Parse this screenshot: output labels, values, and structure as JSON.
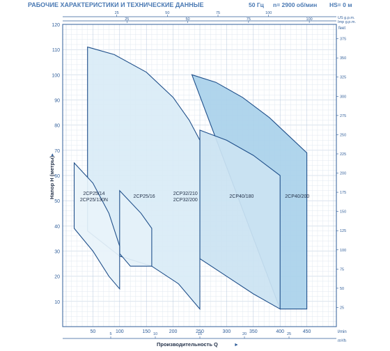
{
  "header": {
    "title": "РАБОЧИЕ ХАРАКТЕРИСТИКИ И ТЕХНИЧЕСКИЕ ДАННЫЕ",
    "frequency": "50 Гц",
    "speed": "n= 2900 об/мин",
    "hs": "HS= 0 м"
  },
  "chart_data": {
    "type": "area",
    "xlabel": "Производительность Q",
    "ylabel": "Напор H (метры)",
    "x_unit": "l/min",
    "y_unit_right": "feet",
    "top_unit": "US g.p.m.",
    "top_unit2": "Imp g.p.m.",
    "bottom_unit": "m³/h",
    "xlim": [
      0,
      500
    ],
    "ylim": [
      0,
      120
    ],
    "x_ticks": [
      50,
      100,
      150,
      200,
      250,
      300,
      350,
      400,
      450
    ],
    "x_tick_labels": [
      "50",
      "100",
      "150",
      "200",
      "250",
      "300",
      "350",
      "400",
      "450"
    ],
    "y_ticks": [
      10,
      20,
      30,
      40,
      50,
      60,
      70,
      80,
      90,
      100,
      110,
      120
    ],
    "y_tick_labels": [
      "10",
      "20",
      "30",
      "40",
      "50",
      "60",
      "70",
      "80",
      "90",
      "100",
      "110",
      "120"
    ],
    "feet_ticks": [
      25,
      50,
      75,
      100,
      125,
      150,
      175,
      200,
      225,
      250,
      275,
      300,
      325,
      350,
      375
    ],
    "feet_tick_labels": [
      "25",
      "50",
      "75",
      "100",
      "125",
      "150",
      "175",
      "200",
      "225",
      "250",
      "275",
      "300",
      "325",
      "350",
      "375"
    ],
    "usgpm_ticks": [
      25,
      50,
      75,
      100
    ],
    "usgpm_tick_labels": [
      "25",
      "50",
      "75",
      "100"
    ],
    "impgpm_ticks": [
      25,
      50,
      75,
      100
    ],
    "impgpm_tick_labels": [
      "25",
      "50",
      "75",
      "100"
    ],
    "m3h_ticks": [
      5,
      10,
      15,
      20,
      25
    ],
    "m3h_tick_labels": [
      "5",
      "10",
      "15",
      "20",
      "25"
    ],
    "series": [
      {
        "name": "2CP40/200",
        "color": "#a9d1ea",
        "top": [
          [
            235,
            100
          ],
          [
            280,
            97
          ],
          [
            330,
            91
          ],
          [
            380,
            83
          ],
          [
            420,
            75
          ],
          [
            450,
            69
          ]
        ],
        "bottom": [
          [
            400,
            7
          ],
          [
            420,
            7
          ],
          [
            450,
            7
          ]
        ]
      },
      {
        "name": "2CP40/180",
        "color": "#cbe3f2",
        "top": [
          [
            250,
            78
          ],
          [
            300,
            74
          ],
          [
            350,
            68
          ],
          [
            400,
            60
          ]
        ],
        "bottom": [
          [
            250,
            27
          ],
          [
            300,
            20
          ],
          [
            350,
            13
          ],
          [
            400,
            7
          ]
        ]
      },
      {
        "name": "2CP32/210\n2CP32/200",
        "color": "#d9ebf6",
        "top": [
          [
            40,
            111
          ],
          [
            90,
            108
          ],
          [
            150,
            101
          ],
          [
            200,
            91
          ],
          [
            230,
            82
          ],
          [
            250,
            74
          ]
        ],
        "bottom": [
          [
            40,
            38
          ],
          [
            100,
            28
          ],
          [
            160,
            24
          ],
          [
            210,
            17
          ],
          [
            250,
            7
          ]
        ]
      },
      {
        "name": "2CP25/16",
        "color": "#e4f1f9",
        "top": [
          [
            100,
            54
          ],
          [
            140,
            45
          ],
          [
            160,
            39
          ]
        ],
        "bottom": [
          [
            100,
            29
          ],
          [
            120,
            24
          ],
          [
            160,
            24
          ]
        ]
      },
      {
        "name": "2CP25/14\n2CP25/130N",
        "color": "#e8f3fa",
        "top": [
          [
            15,
            65
          ],
          [
            50,
            57
          ],
          [
            80,
            45
          ],
          [
            100,
            32
          ]
        ],
        "bottom": [
          [
            15,
            39
          ],
          [
            50,
            30
          ],
          [
            80,
            20
          ],
          [
            100,
            15
          ]
        ]
      }
    ]
  }
}
